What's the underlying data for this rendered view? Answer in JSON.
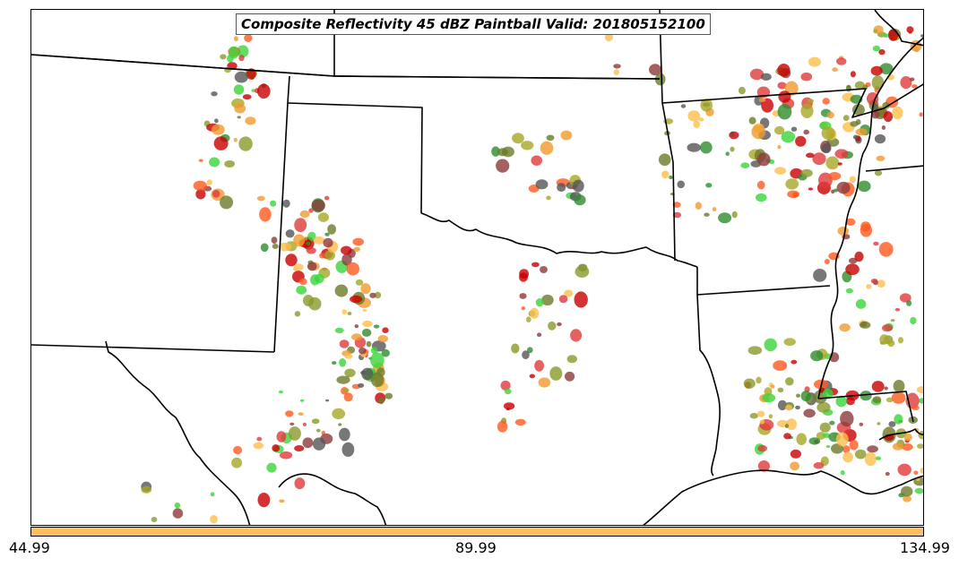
{
  "title": "Composite Reflectivity 45 dBZ Paintball Valid: 201805152100",
  "colorbar": {
    "color": "#fcc05e",
    "ticks": [
      "44.99",
      "89.99",
      "134.99"
    ]
  },
  "palette": [
    "#e03a3a",
    "#ff5a1f",
    "#f29a2e",
    "#fcbf4e",
    "#a8a828",
    "#8a9a2a",
    "#3ad63a",
    "#2e8c2e",
    "#555555",
    "#8c3a3a",
    "#c80000",
    "#6a7a2a"
  ],
  "icons": [
    "state-borders",
    "coastline",
    "reflectivity-blobs"
  ]
}
